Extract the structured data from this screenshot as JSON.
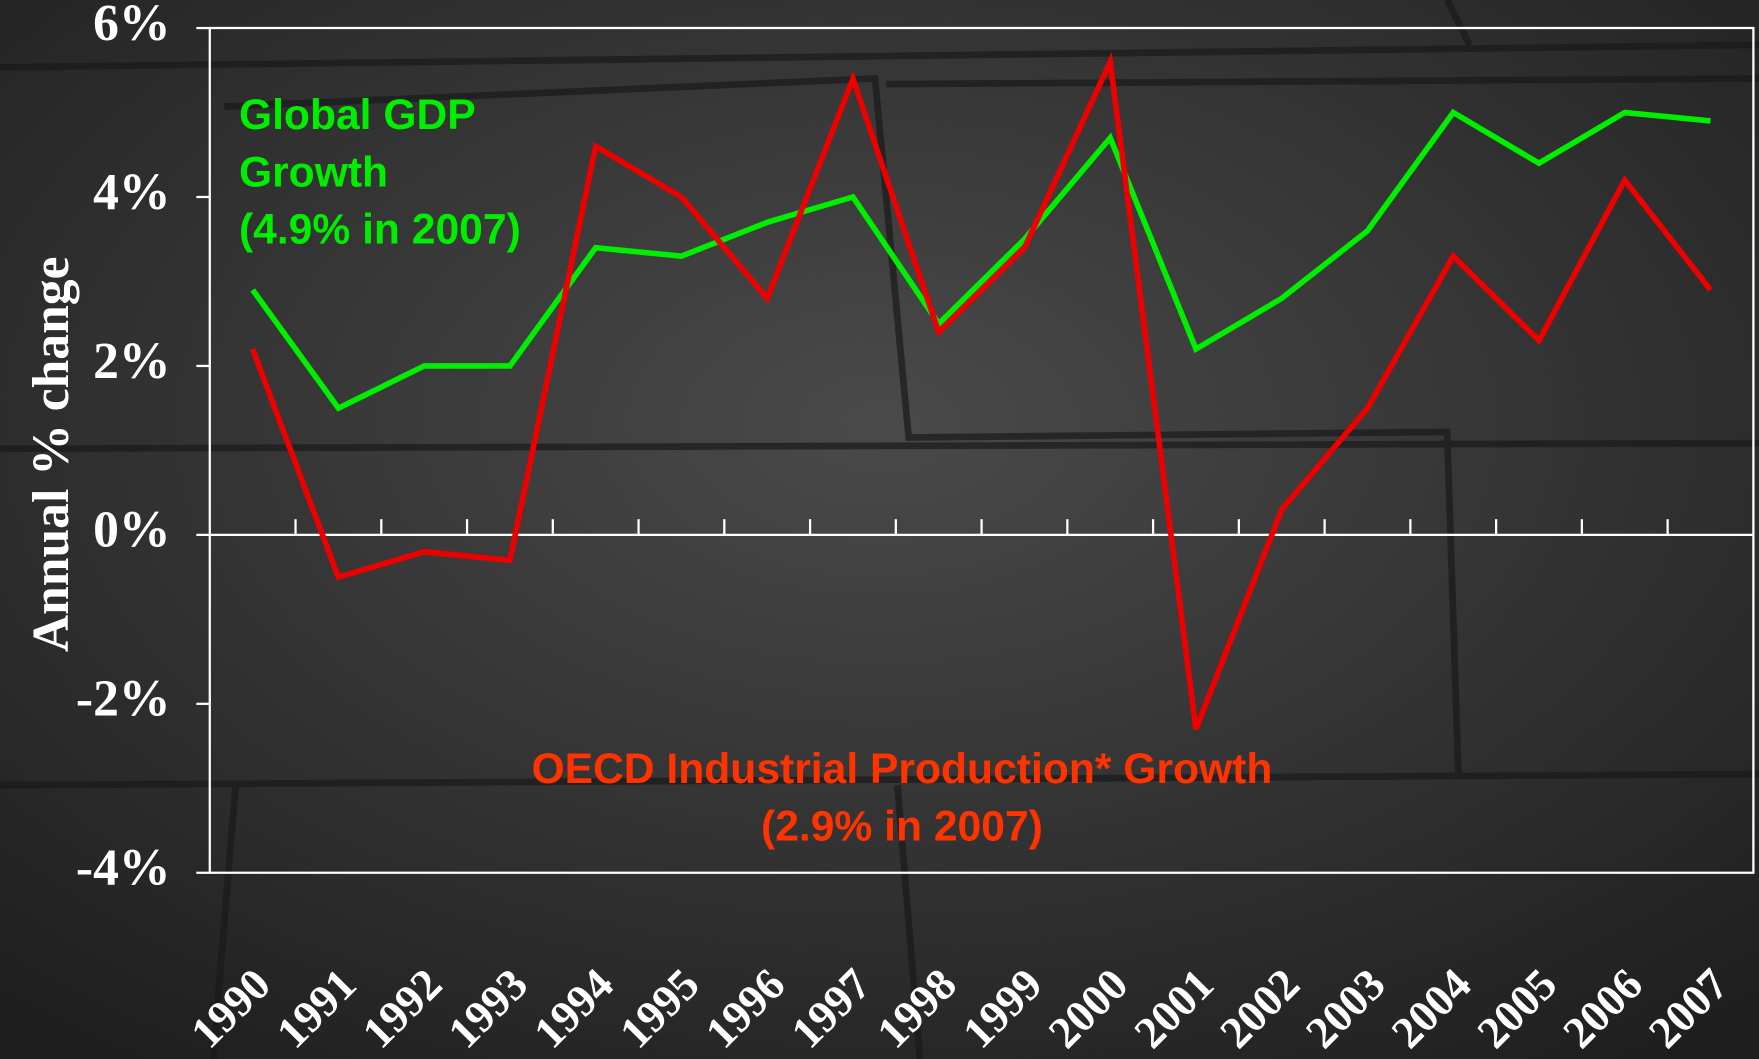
{
  "chart_data": {
    "type": "line",
    "ylabel": "Annual % change",
    "categories": [
      "1990",
      "1991",
      "1992",
      "1993",
      "1994",
      "1995",
      "1996",
      "1997",
      "1998",
      "1999",
      "2000",
      "2001",
      "2002",
      "2003",
      "2004",
      "2005",
      "2006",
      "2007"
    ],
    "series": [
      {
        "color": "#00ee00",
        "values": [
          2.9,
          1.5,
          2.0,
          2.0,
          3.4,
          3.3,
          3.7,
          4.0,
          2.5,
          3.5,
          4.7,
          2.2,
          2.8,
          3.6,
          5.0,
          4.4,
          5.0,
          4.9
        ]
      },
      {
        "color": "#ee0000",
        "values": [
          2.2,
          -0.5,
          -0.2,
          -0.3,
          4.6,
          4.0,
          2.8,
          5.4,
          2.4,
          3.4,
          5.6,
          -2.3,
          0.3,
          1.5,
          3.3,
          2.3,
          4.2,
          2.9
        ]
      }
    ],
    "annotations": [
      {
        "lines": [
          "Global GDP",
          "Growth",
          "(4.9% in 2007)"
        ],
        "color": "#00ee00"
      },
      {
        "lines": [
          "OECD Industrial Production* Growth",
          "(2.9% in 2007)"
        ],
        "color": "#ff3300"
      }
    ],
    "ylim": [
      -4,
      6
    ],
    "yticks": [
      {
        "value": -4,
        "label": "-4%"
      },
      {
        "value": -2,
        "label": "-2%"
      },
      {
        "value": 0,
        "label": "0%"
      },
      {
        "value": 2,
        "label": "2%"
      },
      {
        "value": 4,
        "label": "4%"
      },
      {
        "value": 6,
        "label": "6%"
      }
    ]
  }
}
